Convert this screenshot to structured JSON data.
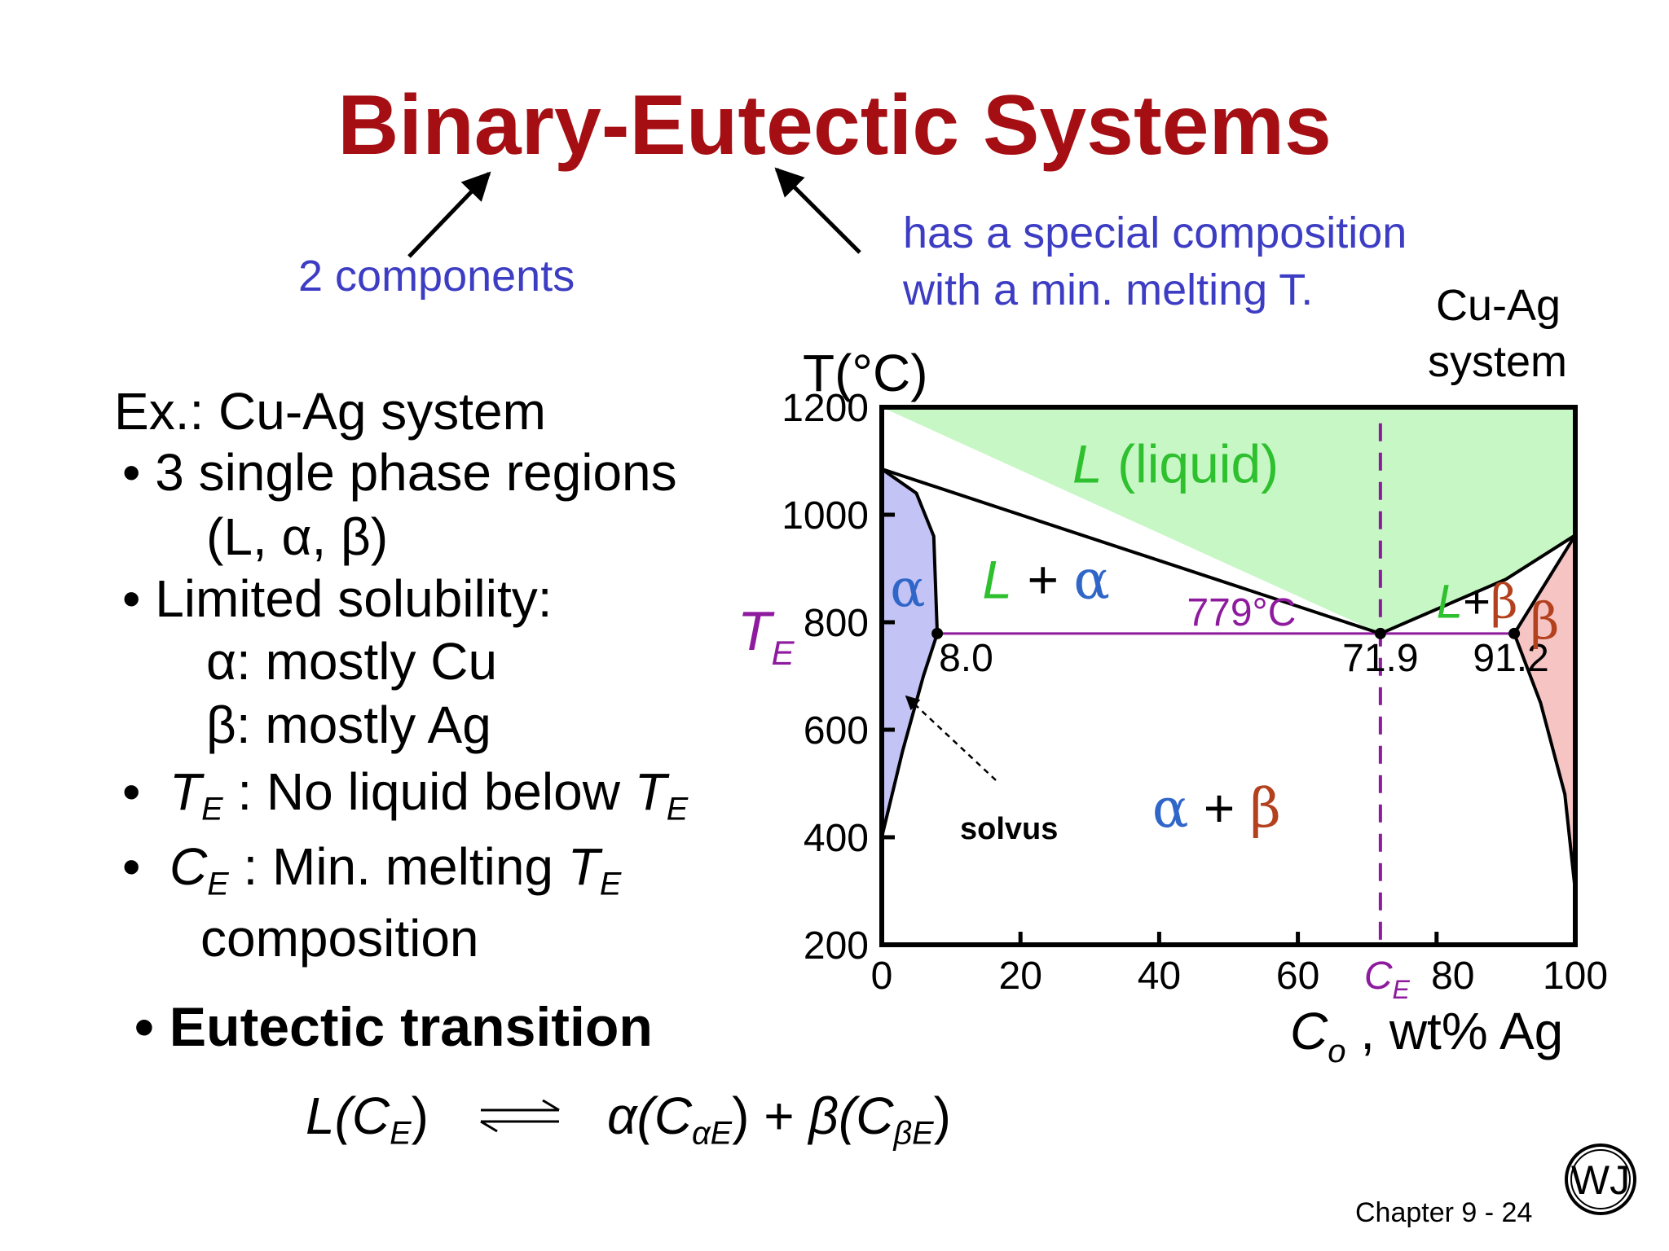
{
  "slide": {
    "title": "Binary-Eutectic Systems",
    "note_left": "2 components",
    "note_right_line1": "has a special composition",
    "note_right_line2": "with a min. melting T.",
    "system_label_line1": "Cu-Ag",
    "system_label_line2": "system",
    "example_heading": "Ex.:  Cu-Ag system",
    "bullets": [
      {
        "text": "3 single phase regions",
        "subtext": "(L, α,  β)"
      },
      {
        "text": "Limited solubility:",
        "sub1": "α:  mostly Cu",
        "sub2": "β:  mostly Ag"
      },
      {
        "lead": "T",
        "lead_sub": "E",
        "text": " :  No liquid below ",
        "tail": "T",
        "tail_sub": "E"
      },
      {
        "lead": "C",
        "lead_sub": "E",
        "text": " :  Min. melting ",
        "tail": "T",
        "tail_sub": "E",
        "line2": "composition"
      }
    ],
    "eutectic_heading": "Eutectic transition",
    "reaction": {
      "left": "L(C",
      "left_sub": "E",
      "left_close": ")",
      "alpha": "α(C",
      "alpha_sub1": "α",
      "alpha_sub2": "E",
      "alpha_close": ")",
      "plus": " + ",
      "beta": "β(C",
      "beta_sub1": "β",
      "beta_sub2": "E",
      "beta_close": ")"
    },
    "footer": "Chapter 9 -  24",
    "logo_letters": "WJ",
    "colors": {
      "title": "#a50f14",
      "note": "#3d3dc4",
      "liquid": "#c6f7c4",
      "alpha": "#c3c3f5",
      "beta": "#f7c4c4",
      "purple": "#8e1a9e",
      "green": "#2ec02e",
      "blue_alpha": "#2f66c8",
      "brown_beta": "#b3411d"
    }
  },
  "chart_data": {
    "type": "phase-diagram",
    "system": "Cu-Ag",
    "xlabel": "C",
    "xlabel_sub": "o",
    "xlabel_rest": " , wt% Ag",
    "ylabel": "T(°C)",
    "xlim": [
      0,
      100
    ],
    "ylim": [
      200,
      1200
    ],
    "x_ticks": [
      0,
      20,
      40,
      60,
      80,
      100
    ],
    "y_ticks": [
      200,
      400,
      600,
      800,
      1000,
      1200
    ],
    "eutectic": {
      "T": 779,
      "T_label": "779°C",
      "C_alpha": 8.0,
      "C_E": 71.9,
      "C_beta": 91.2,
      "C_alpha_label": "8.0",
      "C_E_label": "71.9",
      "C_beta_label": "91.2",
      "TE_label": "T",
      "TE_sub": "E",
      "CE_label": "C",
      "CE_sub": "E"
    },
    "regions": {
      "liquid": "L (liquid)",
      "l_alpha": "L + α",
      "l_beta": "L+β",
      "alpha": "α",
      "beta": "β",
      "alpha_beta": "α + β",
      "solvus": "solvus"
    },
    "boundaries": {
      "liquidus_left": [
        [
          0,
          1085
        ],
        [
          71.9,
          779
        ]
      ],
      "liquidus_right": [
        [
          71.9,
          779
        ],
        [
          90,
          880
        ],
        [
          100,
          962
        ]
      ],
      "solidus_left": [
        [
          0,
          1085
        ],
        [
          5,
          1040
        ],
        [
          7.5,
          960
        ],
        [
          8.0,
          779
        ]
      ],
      "solidus_right": [
        [
          100,
          962
        ],
        [
          91.2,
          779
        ]
      ],
      "solvus_left": [
        [
          8.0,
          779
        ],
        [
          6,
          700
        ],
        [
          3,
          560
        ],
        [
          0,
          400
        ]
      ],
      "solvus_right": [
        [
          91.2,
          779
        ],
        [
          95,
          650
        ],
        [
          98.5,
          480
        ],
        [
          100,
          300
        ]
      ]
    }
  }
}
